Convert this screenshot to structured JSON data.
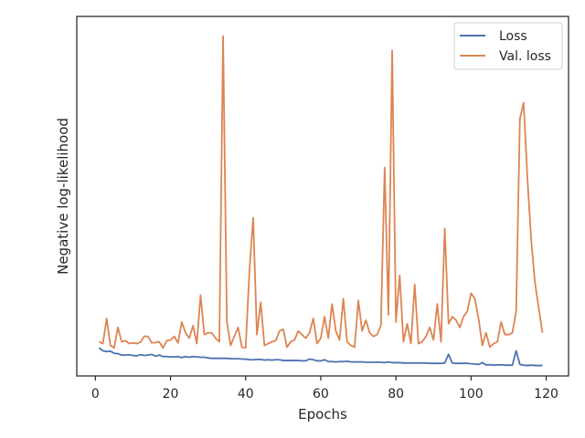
{
  "chart_data": {
    "type": "line",
    "title": "",
    "xlabel": "Epochs",
    "ylabel": "Negative log-likelihood",
    "xlim": [
      -4.95,
      125.95
    ],
    "ylim": [
      0,
      100
    ],
    "y_tick_labels": "none",
    "grid": false,
    "legend_position": "top-right",
    "x_ticks": [
      0,
      20,
      40,
      60,
      80,
      100,
      120
    ],
    "x_tick_labels": [
      "0",
      "20",
      "40",
      "60",
      "80",
      "100",
      "120"
    ],
    "series": [
      {
        "name": "Loss",
        "color": "#4c72b0",
        "x": [
          1,
          2,
          3,
          4,
          5,
          6,
          7,
          8,
          9,
          10,
          11,
          12,
          13,
          14,
          15,
          16,
          17,
          18,
          19,
          20,
          21,
          22,
          23,
          24,
          25,
          26,
          27,
          28,
          29,
          30,
          31,
          32,
          33,
          34,
          35,
          36,
          37,
          38,
          39,
          40,
          41,
          42,
          43,
          44,
          45,
          46,
          47,
          48,
          49,
          50,
          51,
          52,
          53,
          54,
          55,
          56,
          57,
          58,
          59,
          60,
          61,
          62,
          63,
          64,
          65,
          66,
          67,
          68,
          69,
          70,
          71,
          72,
          73,
          74,
          75,
          76,
          77,
          78,
          79,
          80,
          81,
          82,
          83,
          84,
          85,
          86,
          87,
          88,
          89,
          90,
          91,
          92,
          93,
          94,
          95,
          96,
          97,
          98,
          99,
          100,
          101,
          102,
          103,
          104,
          105,
          106,
          107,
          108,
          109,
          110,
          111,
          112,
          113,
          114,
          115,
          116,
          117,
          118,
          119
        ],
        "values": [
          7.8,
          7.0,
          6.8,
          6.9,
          6.3,
          6.2,
          5.8,
          5.8,
          5.9,
          5.7,
          5.6,
          5.9,
          5.7,
          5.8,
          6.0,
          5.5,
          5.8,
          5.4,
          5.4,
          5.3,
          5.3,
          5.4,
          5.1,
          5.4,
          5.2,
          5.4,
          5.3,
          5.2,
          5.2,
          5.0,
          4.9,
          4.9,
          4.9,
          4.9,
          4.9,
          4.8,
          4.8,
          4.8,
          4.7,
          4.7,
          4.5,
          4.5,
          4.6,
          4.6,
          4.4,
          4.5,
          4.4,
          4.5,
          4.5,
          4.3,
          4.3,
          4.3,
          4.3,
          4.3,
          4.2,
          4.2,
          4.7,
          4.5,
          4.2,
          4.2,
          4.5,
          4.0,
          4.0,
          3.9,
          4.0,
          4.0,
          4.1,
          3.9,
          3.9,
          3.9,
          3.9,
          3.8,
          3.8,
          3.8,
          3.8,
          3.8,
          3.7,
          3.9,
          3.7,
          3.7,
          3.7,
          3.6,
          3.6,
          3.6,
          3.6,
          3.6,
          3.6,
          3.6,
          3.5,
          3.5,
          3.5,
          3.5,
          3.6,
          6.0,
          3.6,
          3.5,
          3.5,
          3.5,
          3.5,
          3.4,
          3.3,
          3.2,
          3.7,
          3.1,
          3.1,
          3.0,
          3.1,
          3.1,
          3.0,
          3.0,
          3.0,
          7.0,
          3.2,
          3.0,
          2.9,
          3.0,
          2.9,
          2.9,
          2.9
        ]
      },
      {
        "name": "Val. loss",
        "color": "#dd8452",
        "x": [
          1,
          2,
          3,
          4,
          5,
          6,
          7,
          8,
          9,
          10,
          11,
          12,
          13,
          14,
          15,
          16,
          17,
          18,
          19,
          20,
          21,
          22,
          23,
          24,
          25,
          26,
          27,
          28,
          29,
          30,
          31,
          32,
          33,
          34,
          35,
          36,
          37,
          38,
          39,
          40,
          41,
          42,
          43,
          44,
          45,
          46,
          47,
          48,
          49,
          50,
          51,
          52,
          53,
          54,
          55,
          56,
          57,
          58,
          59,
          60,
          61,
          62,
          63,
          64,
          65,
          66,
          67,
          68,
          69,
          70,
          71,
          72,
          73,
          74,
          75,
          76,
          77,
          78,
          79,
          80,
          81,
          82,
          83,
          84,
          85,
          86,
          87,
          88,
          89,
          90,
          91,
          92,
          93,
          94,
          95,
          96,
          97,
          98,
          99,
          100,
          101,
          102,
          103,
          104,
          105,
          106,
          107,
          108,
          109,
          110,
          111,
          112,
          113,
          114,
          115,
          116,
          117,
          118,
          119
        ],
        "values": [
          9.5,
          9.0,
          16.0,
          8.5,
          7.8,
          13.5,
          9.5,
          9.8,
          9.0,
          9.2,
          9.0,
          9.4,
          11.0,
          11.0,
          9.2,
          9.3,
          9.5,
          7.8,
          9.8,
          10.0,
          11.0,
          9.2,
          15.0,
          12.0,
          10.5,
          14.0,
          9.0,
          22.5,
          11.5,
          12.0,
          12.0,
          10.5,
          9.5,
          94.5,
          15.0,
          8.5,
          11.0,
          13.5,
          8.0,
          7.8,
          29.0,
          44.0,
          11.5,
          20.5,
          8.5,
          9.0,
          9.5,
          9.8,
          12.5,
          13.0,
          8.0,
          9.5,
          10.0,
          12.5,
          11.5,
          10.5,
          12.0,
          16.0,
          9.0,
          10.5,
          16.5,
          10.5,
          20.0,
          12.5,
          10.0,
          21.5,
          9.5,
          8.5,
          8.0,
          21.0,
          12.5,
          15.5,
          12.0,
          11.0,
          11.5,
          14.0,
          58.0,
          17.0,
          90.5,
          15.0,
          28.0,
          9.5,
          14.5,
          9.0,
          25.5,
          9.0,
          9.5,
          11.0,
          13.5,
          10.0,
          20.0,
          9.5,
          41.0,
          14.5,
          16.5,
          15.5,
          13.5,
          16.5,
          18.0,
          23.0,
          21.5,
          16.0,
          8.5,
          12.0,
          8.0,
          9.0,
          9.5,
          15.0,
          11.5,
          11.5,
          12.0,
          18.0,
          71.5,
          76.0,
          55.0,
          38.0,
          26.0,
          19.0,
          12.0
        ]
      }
    ]
  }
}
